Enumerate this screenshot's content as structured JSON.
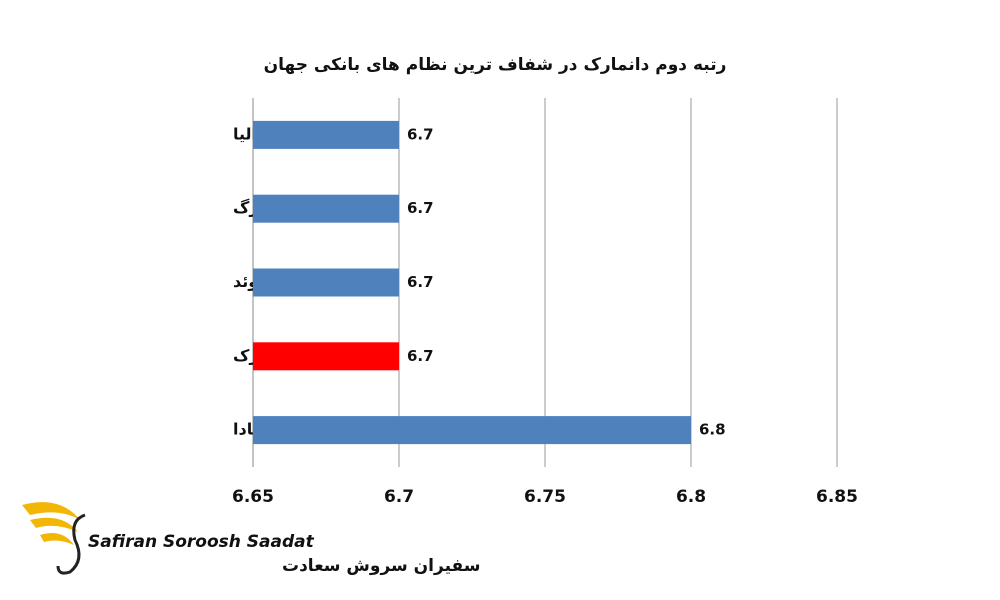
{
  "chart_data": {
    "type": "hbar",
    "title": "رتبه دوم دانمارک در شفاف ترین نظام های بانکی جهان",
    "categories": [
      "استرالیا",
      "لوکزامبورگ",
      "سوئد",
      "دانمارک",
      "کانادا"
    ],
    "values": [
      6.7,
      6.7,
      6.7,
      6.7,
      6.8
    ],
    "colors": [
      "#4f81bd",
      "#4f81bd",
      "#4f81bd",
      "#ff0000",
      "#4f81bd"
    ],
    "xlim": [
      6.65,
      6.85
    ],
    "xticks": [
      6.65,
      6.7,
      6.75,
      6.8,
      6.85
    ],
    "grid": true
  },
  "logo": {
    "latin": "Safiran Soroosh Saadat",
    "persian": "سفیران سروش سعادت"
  }
}
